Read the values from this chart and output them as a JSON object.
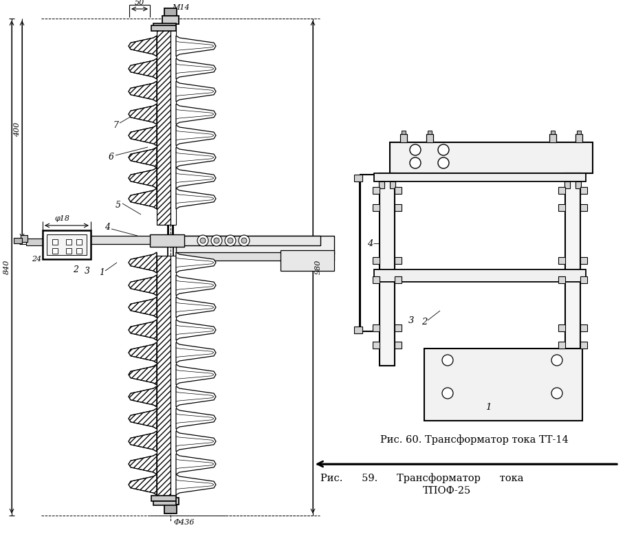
{
  "bg_color": "#ffffff",
  "lc": "#000000",
  "fig_w": 9.25,
  "fig_h": 7.87,
  "cap_tt14": "Рис. 60. Трансформатор тока ТТ-14",
  "cap_tpof_line1": "Рис.      59.      Трансформатор      тока",
  "cap_tpof_line2": "ТПОФ-25",
  "dim_M14": "M14",
  "dim_50": "50",
  "dim_400": "400",
  "dim_840": "840",
  "dim_phi18": "φ18",
  "dim_980": "980",
  "dim_phi436": "Φ436",
  "dim_24": "24"
}
